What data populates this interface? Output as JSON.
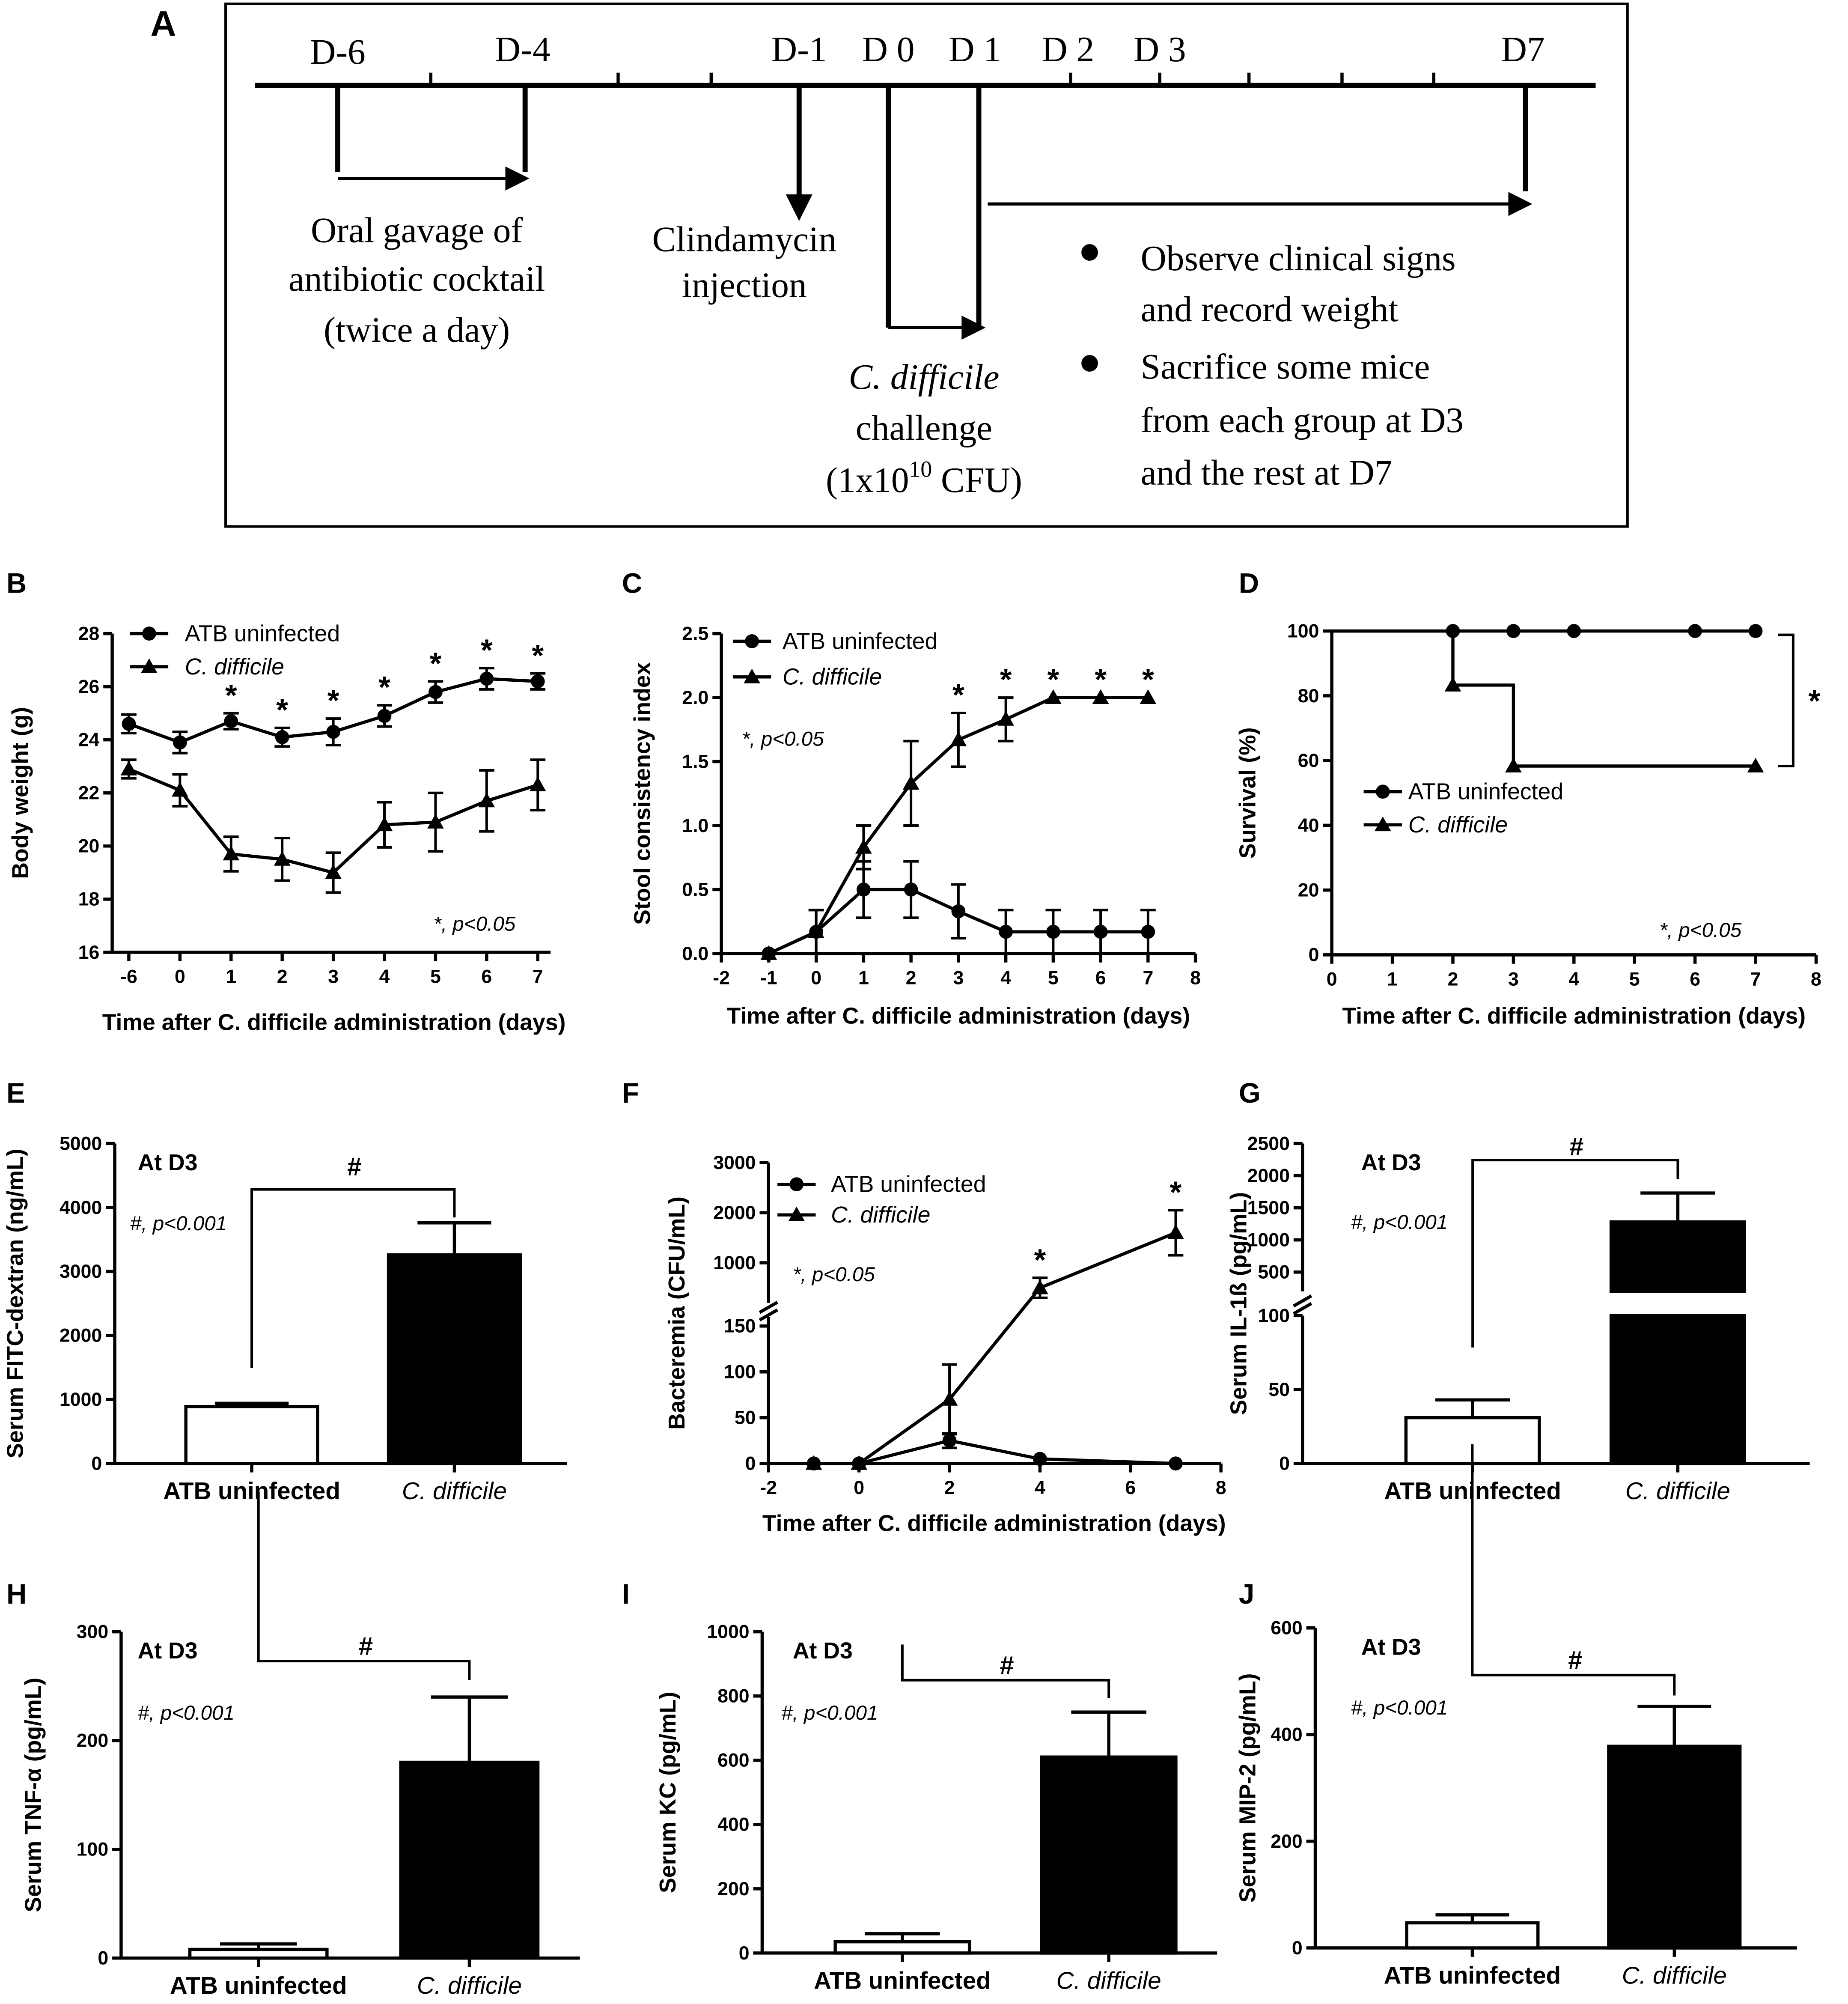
{
  "timeline": {
    "panel": "A",
    "days": [
      "D-6",
      "D-4",
      "D-1",
      "D 0",
      "D 1",
      "D 2",
      "D 3",
      "D7"
    ],
    "gavage": [
      "Oral gavage of",
      "antibiotic cocktail",
      "(twice a day)"
    ],
    "clindamycin": [
      "Clindamycin",
      "injection"
    ],
    "challenge": {
      "organism": "C. difficile",
      "word": "challenge",
      "dose": "(1x10",
      "exponent": "10",
      "unit": " CFU)"
    },
    "bullets": [
      [
        "Observe clinical signs",
        "and record weight"
      ],
      [
        "Sacrifice some mice",
        "from each group at D3",
        "and the rest at D7"
      ]
    ]
  },
  "chart_data": [
    {
      "panel": "B",
      "type": "line",
      "ylabel": "Body weight (g)",
      "xlabel": "Time after C. difficile administration (days)",
      "categories": [
        -6,
        0,
        1,
        2,
        3,
        4,
        5,
        6,
        7
      ],
      "series": [
        {
          "name": "ATB uninfected",
          "marker": "circle",
          "color": "#000000",
          "values": [
            24.6,
            23.9,
            24.7,
            24.1,
            24.3,
            24.9,
            25.8,
            26.3,
            26.2
          ],
          "errors": [
            0.35,
            0.4,
            0.3,
            0.35,
            0.5,
            0.4,
            0.4,
            0.4,
            0.3
          ]
        },
        {
          "name": "C. difficile",
          "marker": "triangle",
          "color": "#000000",
          "values": [
            22.9,
            22.1,
            19.7,
            19.5,
            19.0,
            20.8,
            20.9,
            21.7,
            22.3
          ],
          "errors": [
            0.35,
            0.6,
            0.65,
            0.8,
            0.75,
            0.85,
            1.1,
            1.15,
            0.95
          ]
        }
      ],
      "ylim": [
        16,
        28
      ],
      "yticks": [
        16,
        18,
        20,
        22,
        24,
        26,
        28
      ],
      "annotations": [
        {
          "text": "*",
          "x": 1
        },
        {
          "text": "*",
          "x": 2
        },
        {
          "text": "*",
          "x": 3
        },
        {
          "text": "*",
          "x": 4
        },
        {
          "text": "*",
          "x": 5
        },
        {
          "text": "*",
          "x": 6
        },
        {
          "text": "*",
          "x": 7
        }
      ],
      "note": "*, p<0.05"
    },
    {
      "panel": "C",
      "type": "line",
      "ylabel": "Stool consistency index",
      "xlabel": "Time after C. difficile administration (days)",
      "series": [
        {
          "name": "ATB uninfected",
          "marker": "circle",
          "color": "#000000",
          "x": [
            -1,
            0,
            1,
            2,
            3,
            4,
            5,
            6,
            7
          ],
          "values": [
            0,
            0.17,
            0.5,
            0.5,
            0.33,
            0.17,
            0.17,
            0.17,
            0.17
          ],
          "errors": [
            0,
            0.17,
            0.22,
            0.22,
            0.21,
            0.17,
            0.17,
            0.17,
            0.17
          ]
        },
        {
          "name": "C. difficile",
          "marker": "triangle",
          "color": "#000000",
          "x": [
            -1,
            0,
            1,
            2,
            3,
            4,
            5,
            6,
            7
          ],
          "values": [
            0,
            0.17,
            0.83,
            1.33,
            1.67,
            1.83,
            2,
            2,
            2
          ],
          "errors": [
            0,
            0.17,
            0.17,
            0.33,
            0.21,
            0.17,
            0,
            0,
            0
          ]
        }
      ],
      "xlim": [
        -2,
        8
      ],
      "xticks": [
        -2,
        -1,
        0,
        1,
        2,
        3,
        4,
        5,
        6,
        7,
        8
      ],
      "ylim": [
        0,
        2.5
      ],
      "yticks": [
        {
          "value": 0,
          "label": "0.0"
        },
        0.5,
        {
          "value": 1,
          "label": "1.0"
        },
        1.5,
        {
          "value": 2,
          "label": "2.0"
        },
        2.5
      ],
      "annotations": [
        {
          "text": "*",
          "x": 3
        },
        {
          "text": "*",
          "x": 4
        },
        {
          "text": "*",
          "x": 5
        },
        {
          "text": "*",
          "x": 6
        },
        {
          "text": "*",
          "x": 7
        }
      ],
      "note": "*, p<0.05"
    },
    {
      "panel": "D",
      "type": "line",
      "drawstyle": "steps",
      "ylabel": "Survival (%)",
      "xlabel": "Time after C. difficile administration (days)",
      "series": [
        {
          "name": "ATB uninfected",
          "marker": "circle",
          "color": "#000000",
          "x": [
            2,
            3,
            4,
            6,
            7
          ],
          "values": [
            100,
            100,
            100,
            100,
            100
          ]
        },
        {
          "name": "C. difficile",
          "marker": "triangle",
          "color": "#000000",
          "x": [
            2,
            3,
            7
          ],
          "values": [
            83.3,
            58.3,
            58.3
          ]
        }
      ],
      "xlim": [
        0,
        8
      ],
      "xticks": [
        0,
        1,
        2,
        3,
        4,
        5,
        6,
        7,
        8
      ],
      "ylim": [
        0,
        100
      ],
      "yticks": [
        0,
        20,
        40,
        60,
        80,
        100
      ],
      "bracket_label": "*",
      "note": "*, p<0.05"
    },
    {
      "panel": "E",
      "type": "bar",
      "ylabel": "Serum FITC-dextran (ng/mL)",
      "categories": [
        "ATB uninfected",
        "C. difficile"
      ],
      "values": [
        890,
        3260
      ],
      "errors": [
        50,
        500
      ],
      "colors": [
        "#ffffff",
        "#000000"
      ],
      "ylim": [
        0,
        5000
      ],
      "yticks": [
        0,
        1000,
        2000,
        3000,
        4000,
        5000
      ],
      "label": "At D3",
      "note": "#, p<0.001",
      "bracket_label": "#"
    },
    {
      "panel": "F",
      "type": "line",
      "ylabel": "Bacteremia (CFU/mL)",
      "xlabel": "Time after C. difficile administration (days)",
      "series": [
        {
          "name": "ATB uninfected",
          "marker": "circle",
          "color": "#000000",
          "x": [
            -1,
            0,
            2,
            4,
            7
          ],
          "values": [
            0,
            0,
            25,
            5,
            0
          ],
          "errors": [
            0,
            0,
            8,
            0,
            0
          ]
        },
        {
          "name": "C. difficile",
          "marker": "triangle",
          "color": "#000000",
          "x": [
            -1,
            0,
            2,
            4,
            7
          ],
          "values": [
            0,
            0,
            70,
            500,
            1600
          ],
          "errors": [
            0,
            0,
            38,
            200,
            450
          ]
        }
      ],
      "xlim": [
        -2,
        8
      ],
      "xticks": [
        -2,
        0,
        2,
        4,
        6,
        8
      ],
      "segments": [
        {
          "ylim": [
            0,
            160
          ],
          "yticks": [
            0,
            50,
            100,
            150
          ]
        },
        {
          "ylim": [
            200,
            3000
          ],
          "yticks": [
            1000,
            2000,
            3000
          ]
        }
      ],
      "annotations": [
        {
          "text": "*",
          "x": 4
        },
        {
          "text": "*",
          "x": 7
        }
      ],
      "note": "*, p<0.05"
    },
    {
      "panel": "G",
      "type": "bar",
      "ylabel": "Serum IL-1ß (pg/mL)",
      "categories": [
        "ATB uninfected",
        "C. difficile"
      ],
      "values": [
        31,
        1280
      ],
      "errors": [
        12,
        450
      ],
      "colors": [
        "#ffffff",
        "#000000"
      ],
      "segments": [
        {
          "ylim": [
            0,
            100
          ],
          "yticks": [
            0,
            50,
            100
          ]
        },
        {
          "ylim": [
            200,
            2500
          ],
          "yticks": [
            500,
            1000,
            1500,
            2000,
            2500
          ]
        }
      ],
      "label": "At D3",
      "note": "#, p<0.001",
      "bracket_label": "#"
    },
    {
      "panel": "H",
      "type": "bar",
      "ylabel": "Serum TNF-α (pg/mL)",
      "categories": [
        "ATB uninfected",
        "C. difficile"
      ],
      "values": [
        8,
        180
      ],
      "errors": [
        5,
        60
      ],
      "colors": [
        "#ffffff",
        "#000000"
      ],
      "ylim": [
        0,
        300
      ],
      "yticks": [
        0,
        100,
        200,
        300
      ],
      "label": "At D3",
      "note": "#, p<0.001",
      "bracket_label": "#"
    },
    {
      "panel": "I",
      "type": "bar",
      "ylabel": "Serum KC (pg/mL)",
      "categories": [
        "ATB uninfected",
        "C. difficile"
      ],
      "values": [
        35,
        610
      ],
      "errors": [
        25,
        140
      ],
      "colors": [
        "#ffffff",
        "#000000"
      ],
      "ylim": [
        0,
        1000
      ],
      "yticks": [
        0,
        200,
        400,
        600,
        800,
        1000
      ],
      "label": "At D3",
      "note": "#, p<0.001",
      "bracket_label": "#"
    },
    {
      "panel": "J",
      "type": "bar",
      "ylabel": "Serum MIP-2 (pg/mL)",
      "categories": [
        "ATB uninfected",
        "C. difficile"
      ],
      "values": [
        47,
        378
      ],
      "errors": [
        15,
        75
      ],
      "colors": [
        "#ffffff",
        "#000000"
      ],
      "ylim": [
        0,
        600
      ],
      "yticks": [
        0,
        200,
        400,
        600
      ],
      "label": "At D3",
      "note": "#, p<0.001",
      "bracket_label": "#"
    }
  ]
}
